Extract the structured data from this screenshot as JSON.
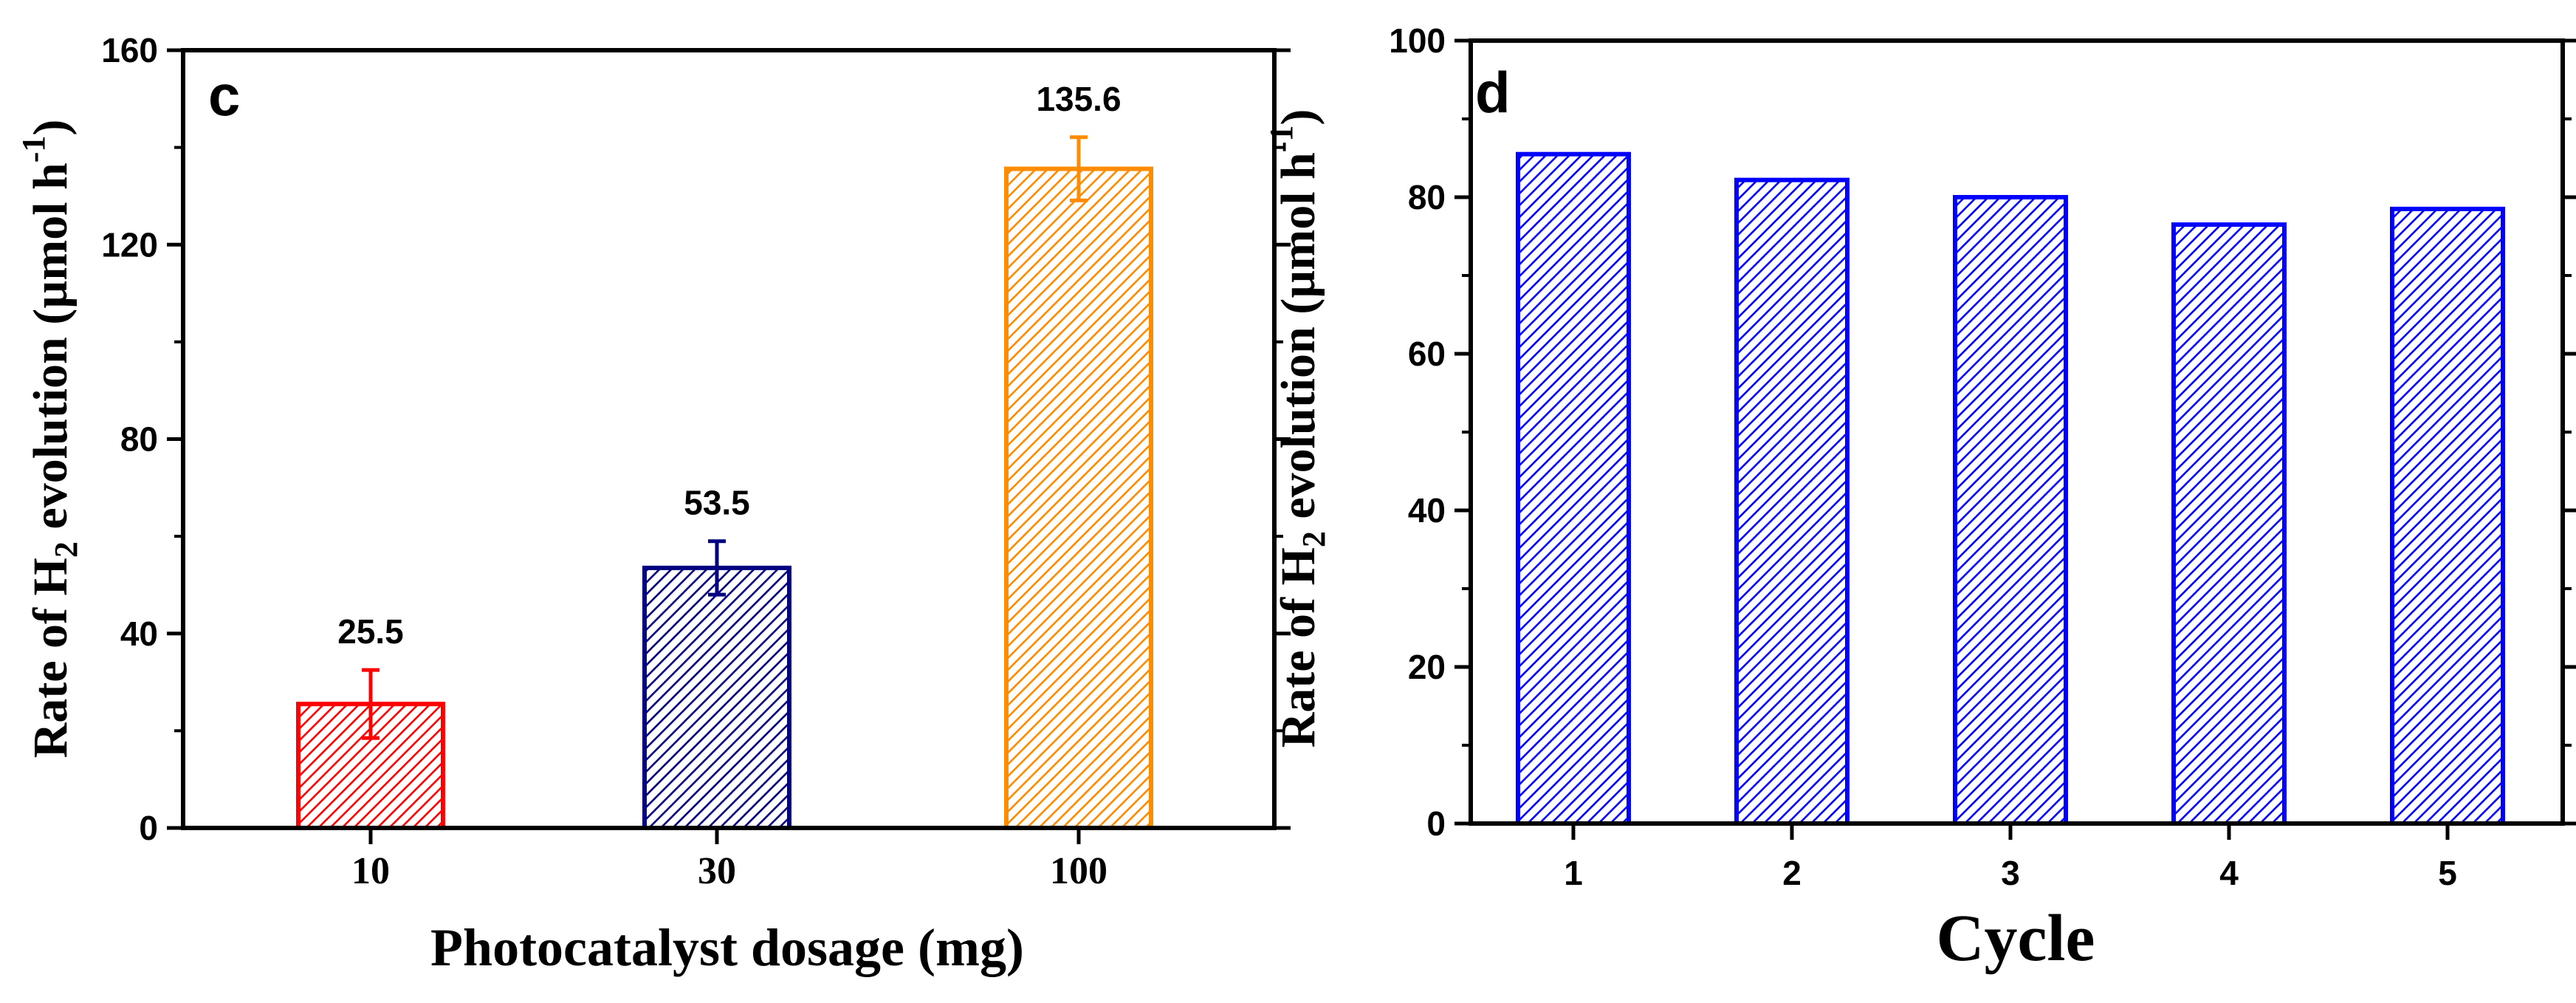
{
  "chart_data": [
    {
      "panel_label": "c",
      "type": "bar",
      "title": "",
      "xlabel": "Photocatalyst dosage (mg)",
      "ylabel": {
        "main": "Rate of H",
        "sub": "2",
        "rest": " evolution (µmol h",
        "sup": "-1",
        "close": ")"
      },
      "categories": [
        "10",
        "30",
        "100"
      ],
      "values": [
        25.5,
        53.5,
        135.6
      ],
      "data_labels": [
        "25.5",
        "53.5",
        "135.6"
      ],
      "errors": [
        7.0,
        5.5,
        6.5
      ],
      "colors": [
        "#ff0000",
        "#000080",
        "#ff8c00"
      ],
      "ylim": [
        0,
        160
      ],
      "yticks": [
        0,
        40,
        80,
        120,
        160
      ],
      "ytick_labels": [
        "0",
        "40",
        "80",
        "120",
        "160"
      ],
      "grid": false,
      "hatch": "diagonal"
    },
    {
      "panel_label": "d",
      "type": "bar",
      "title": "",
      "xlabel": "Cycle",
      "ylabel": {
        "main": "Rate of H",
        "sub": "2",
        "rest": " evolution (µmol h",
        "sup": "-1",
        "close": ")"
      },
      "categories": [
        "1",
        "2",
        "3",
        "4",
        "5"
      ],
      "values": [
        85.5,
        82.2,
        80.0,
        76.5,
        78.5
      ],
      "colors": [
        "#0000ff",
        "#0000ff",
        "#0000ff",
        "#0000ff",
        "#0000ff"
      ],
      "ylim": [
        0,
        100
      ],
      "yticks": [
        0,
        20,
        40,
        60,
        80,
        100
      ],
      "ytick_labels": [
        "0",
        "20",
        "40",
        "60",
        "80",
        "100"
      ],
      "grid": false,
      "hatch": "diagonal"
    }
  ]
}
